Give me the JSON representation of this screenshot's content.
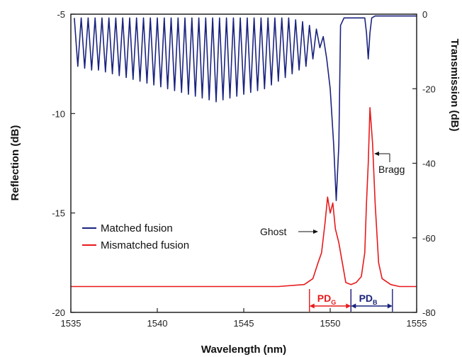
{
  "chart_data": {
    "type": "line",
    "xlabel": "Wavelength (nm)",
    "ylabel": "Reflection (dB)",
    "y2label": "Transmission (dB)",
    "xlim": [
      1535,
      1555
    ],
    "ylim": [
      -20,
      -5
    ],
    "y2lim": [
      -80,
      0
    ],
    "x_ticks": [
      1535,
      1540,
      1545,
      1550,
      1555
    ],
    "y_ticks": [
      -20,
      -15,
      -10,
      -5
    ],
    "y2_ticks": [
      -80,
      -60,
      -40,
      -20,
      0
    ],
    "grid": false,
    "legend": "middle-left",
    "series": [
      {
        "name": "Matched fusion",
        "color": "#1a237e",
        "axis": "right",
        "x": [
          1535.2,
          1535.4,
          1535.6,
          1535.8,
          1536.0,
          1536.2,
          1536.4,
          1536.6,
          1536.8,
          1537.0,
          1537.2,
          1537.4,
          1537.6,
          1537.8,
          1538.0,
          1538.2,
          1538.4,
          1538.6,
          1538.8,
          1539.0,
          1539.2,
          1539.4,
          1539.6,
          1539.8,
          1540.0,
          1540.2,
          1540.4,
          1540.6,
          1540.8,
          1541.0,
          1541.2,
          1541.4,
          1541.6,
          1541.8,
          1542.0,
          1542.2,
          1542.4,
          1542.6,
          1542.8,
          1543.0,
          1543.2,
          1543.4,
          1543.6,
          1543.8,
          1544.0,
          1544.2,
          1544.4,
          1544.6,
          1544.8,
          1545.0,
          1545.2,
          1545.4,
          1545.6,
          1545.8,
          1546.0,
          1546.2,
          1546.4,
          1546.6,
          1546.8,
          1547.0,
          1547.2,
          1547.4,
          1547.6,
          1547.8,
          1548.0,
          1548.2,
          1548.4,
          1548.6,
          1548.8,
          1549.0,
          1549.2,
          1549.4,
          1549.6,
          1549.8,
          1550.0,
          1550.2,
          1550.35,
          1550.5,
          1550.6,
          1550.8,
          1551.0,
          1551.5,
          1552.0,
          1552.1,
          1552.2,
          1552.3,
          1552.4,
          1552.6,
          1553.0,
          1554.0,
          1555.0
        ],
        "y": [
          -1.0,
          -14.0,
          -1.0,
          -14.5,
          -1.0,
          -15.0,
          -1.0,
          -15.0,
          -1.0,
          -15.5,
          -1.0,
          -16.0,
          -1.0,
          -16.5,
          -1.0,
          -17.0,
          -1.0,
          -17.5,
          -1.0,
          -18.0,
          -1.0,
          -18.5,
          -1.0,
          -19.0,
          -1.0,
          -19.5,
          -1.0,
          -20.0,
          -1.0,
          -20.5,
          -1.0,
          -21.0,
          -1.0,
          -21.5,
          -1.0,
          -22.0,
          -1.0,
          -22.5,
          -1.0,
          -23.0,
          -1.0,
          -23.5,
          -1.0,
          -23.0,
          -1.0,
          -22.5,
          -1.0,
          -22.0,
          -1.0,
          -21.5,
          -1.0,
          -21.0,
          -1.0,
          -20.5,
          -1.0,
          -20.0,
          -1.0,
          -19.0,
          -1.0,
          -18.0,
          -1.0,
          -17.0,
          -1.0,
          -16.0,
          -1.5,
          -15.0,
          -2.0,
          -14.0,
          -3.0,
          -12.0,
          -4.0,
          -9.0,
          -6.0,
          -12.0,
          -20.0,
          -35.0,
          -50.0,
          -35.0,
          -3.0,
          -1.0,
          -1.0,
          -1.0,
          -1.0,
          -5.0,
          -12.0,
          -5.0,
          -1.0,
          -0.5,
          -0.5,
          -0.5,
          -0.5
        ]
      },
      {
        "name": "Mismatched fusion",
        "color": "#e8191b",
        "axis": "left",
        "x": [
          1535.0,
          1537.0,
          1539.0,
          1541.0,
          1543.0,
          1545.0,
          1547.0,
          1548.5,
          1549.0,
          1549.3,
          1549.5,
          1549.7,
          1549.85,
          1550.0,
          1550.15,
          1550.3,
          1550.5,
          1550.7,
          1550.9,
          1551.2,
          1551.5,
          1551.8,
          1552.0,
          1552.1,
          1552.2,
          1552.3,
          1552.45,
          1552.6,
          1552.8,
          1553.0,
          1553.5,
          1554.0,
          1555.0
        ],
        "y": [
          -18.7,
          -18.7,
          -18.7,
          -18.7,
          -18.7,
          -18.7,
          -18.7,
          -18.6,
          -18.3,
          -17.5,
          -17.0,
          -15.5,
          -14.2,
          -15.0,
          -14.5,
          -15.8,
          -16.5,
          -17.5,
          -18.5,
          -18.6,
          -18.5,
          -18.2,
          -17.0,
          -14.5,
          -12.5,
          -9.7,
          -11.5,
          -14.5,
          -17.5,
          -18.3,
          -18.6,
          -18.7,
          -18.7
        ]
      }
    ],
    "annotations": [
      {
        "text": "Bragg"
      },
      {
        "text": "Ghost"
      }
    ],
    "ranges": [
      {
        "label": "PD",
        "sub": "G",
        "from": 1548.8,
        "to": 1551.2,
        "color": "#e8191b"
      },
      {
        "label": "PD",
        "sub": "B",
        "from": 1551.2,
        "to": 1553.6,
        "color": "#1a237e"
      }
    ]
  }
}
